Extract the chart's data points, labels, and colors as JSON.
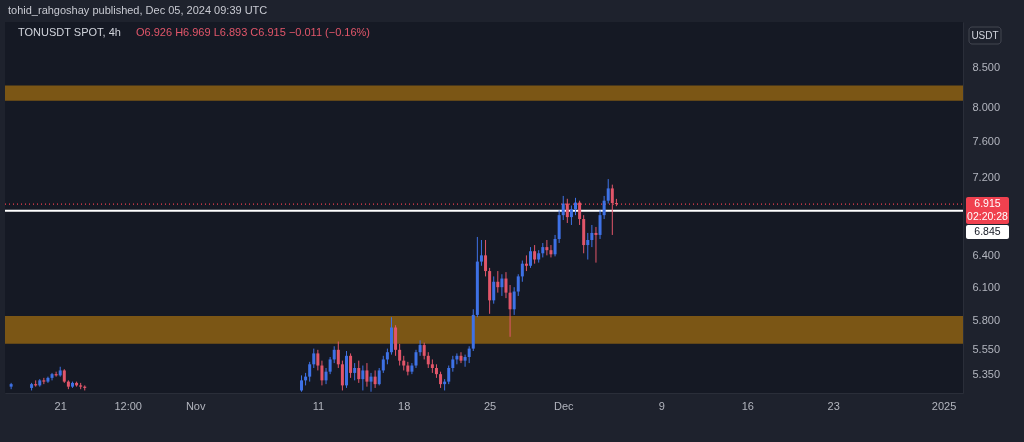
{
  "chart_data": {
    "type": "candlestick",
    "title": "TONUSDT SPOT, 4h",
    "subtitle": "O6.926  H6.969  L6.893  C6.915  −0.011 (−0.16%)",
    "ylabel": "USDT",
    "annotations": [
      "tohid_rahgoshay published, Dec 05, 2024 09:39 UTC",
      "02:20:28"
    ],
    "log": "y",
    "xlim": [
      "2024-10-16T12:00",
      "2025-01-02T14:00"
    ],
    "ylim": [
      5.2,
      9.1
    ],
    "xticks": [
      {
        "value": "2024-10-21",
        "label": "21"
      },
      {
        "value": "2024-10-26T12:00",
        "label": "12:00"
      },
      {
        "value": "2024-11-01",
        "label": "Nov"
      },
      {
        "value": "2024-11-11",
        "label": "11"
      },
      {
        "value": "2024-11-18",
        "label": "18"
      },
      {
        "value": "2024-11-25",
        "label": "25"
      },
      {
        "value": "2024-12-01",
        "label": "Dec"
      },
      {
        "value": "2024-12-09",
        "label": "9"
      },
      {
        "value": "2024-12-16",
        "label": "16"
      },
      {
        "value": "2024-12-23",
        "label": "23"
      },
      {
        "value": "2025-01-01",
        "label": "2025"
      }
    ],
    "yticks": [
      {
        "value": 5.35,
        "label": "5.350"
      },
      {
        "value": 5.55,
        "label": "5.550"
      },
      {
        "value": 5.8,
        "label": "5.800"
      },
      {
        "value": 6.1,
        "label": "6.100"
      },
      {
        "value": 6.4,
        "label": "6.400"
      },
      {
        "value": 7.2,
        "label": "7.200"
      },
      {
        "value": 7.6,
        "label": "7.600"
      },
      {
        "value": 8,
        "label": "8.000"
      },
      {
        "value": 8.5,
        "label": "8.500"
      }
    ],
    "ref_lines": [
      {
        "axis": "y",
        "value": 6.915,
        "label": "6.915",
        "color": "#f0414f",
        "line_style": "dotted"
      },
      {
        "axis": "y",
        "value": 6.845,
        "label": "6.845",
        "color": "#ffffff",
        "line_style": "solid"
      }
    ],
    "bands": [
      {
        "axis": "y",
        "from": 8.08,
        "to": 8.27,
        "color": "#7b5615"
      },
      {
        "axis": "y",
        "from": 5.6,
        "to": 5.84,
        "color": "#7b5615"
      }
    ],
    "x": [
      "2024-10-17T00:00",
      "2024-10-18T16:00",
      "2024-10-19T00:00",
      "2024-10-19T08:00",
      "2024-10-19T16:00",
      "2024-10-20T00:00",
      "2024-10-20T08:00",
      "2024-10-20T16:00",
      "2024-10-21T00:00",
      "2024-10-21T08:00",
      "2024-10-21T16:00",
      "2024-10-22T00:00",
      "2024-10-22T08:00",
      "2024-10-22T16:00",
      "2024-10-23T00:00",
      "2024-11-09T16:00",
      "2024-11-10T00:00",
      "2024-11-10T08:00",
      "2024-11-10T16:00",
      "2024-11-11T00:00",
      "2024-11-11T08:00",
      "2024-11-11T16:00",
      "2024-11-12T00:00",
      "2024-11-12T08:00",
      "2024-11-12T16:00",
      "2024-11-13T00:00",
      "2024-11-13T08:00",
      "2024-11-13T16:00",
      "2024-11-14T00:00",
      "2024-11-14T08:00",
      "2024-11-14T16:00",
      "2024-11-15T00:00",
      "2024-11-15T08:00",
      "2024-11-15T16:00",
      "2024-11-16T00:00",
      "2024-11-16T08:00",
      "2024-11-16T16:00",
      "2024-11-17T00:00",
      "2024-11-17T08:00",
      "2024-11-17T16:00",
      "2024-11-18T00:00",
      "2024-11-18T08:00",
      "2024-11-18T16:00",
      "2024-11-19T00:00",
      "2024-11-19T08:00",
      "2024-11-19T16:00",
      "2024-11-20T00:00",
      "2024-11-20T08:00",
      "2024-11-20T16:00",
      "2024-11-21T00:00",
      "2024-11-21T08:00",
      "2024-11-21T16:00",
      "2024-11-22T00:00",
      "2024-11-22T08:00",
      "2024-11-22T16:00",
      "2024-11-23T00:00",
      "2024-11-23T08:00",
      "2024-11-23T16:00",
      "2024-11-24T00:00",
      "2024-11-24T08:00",
      "2024-11-24T16:00",
      "2024-11-25T00:00",
      "2024-11-25T08:00",
      "2024-11-25T16:00",
      "2024-11-26T00:00",
      "2024-11-26T08:00",
      "2024-11-26T16:00",
      "2024-11-27T00:00",
      "2024-11-27T08:00",
      "2024-11-27T16:00",
      "2024-11-28T00:00",
      "2024-11-28T08:00",
      "2024-11-28T16:00",
      "2024-11-29T00:00",
      "2024-11-29T08:00",
      "2024-11-29T16:00",
      "2024-11-30T00:00",
      "2024-11-30T08:00",
      "2024-11-30T16:00",
      "2024-12-01T00:00",
      "2024-12-01T08:00",
      "2024-12-01T16:00",
      "2024-12-02T00:00",
      "2024-12-02T08:00",
      "2024-12-02T16:00",
      "2024-12-03T00:00",
      "2024-12-03T08:00",
      "2024-12-03T16:00",
      "2024-12-04T00:00",
      "2024-12-04T08:00",
      "2024-12-04T16:00",
      "2024-12-05T00:00",
      "2024-12-05T08:00"
    ],
    "ohlc": [
      [
        5.25,
        5.28,
        5.23,
        5.27
      ],
      [
        5.24,
        5.28,
        5.22,
        5.27
      ],
      [
        5.27,
        5.3,
        5.25,
        5.26
      ],
      [
        5.26,
        5.31,
        5.25,
        5.3
      ],
      [
        5.3,
        5.32,
        5.27,
        5.29
      ],
      [
        5.29,
        5.33,
        5.28,
        5.32
      ],
      [
        5.32,
        5.36,
        5.3,
        5.35
      ],
      [
        5.35,
        5.37,
        5.33,
        5.34
      ],
      [
        5.34,
        5.41,
        5.33,
        5.38
      ],
      [
        5.38,
        5.39,
        5.28,
        5.29
      ],
      [
        5.29,
        5.3,
        5.23,
        5.25
      ],
      [
        5.25,
        5.29,
        5.24,
        5.28
      ],
      [
        5.28,
        5.29,
        5.25,
        5.26
      ],
      [
        5.26,
        5.28,
        5.23,
        5.25
      ],
      [
        5.25,
        5.26,
        5.22,
        5.24
      ],
      [
        5.22,
        5.34,
        5.21,
        5.3
      ],
      [
        5.3,
        5.36,
        5.26,
        5.33
      ],
      [
        5.33,
        5.45,
        5.29,
        5.43
      ],
      [
        5.43,
        5.56,
        5.4,
        5.52
      ],
      [
        5.52,
        5.55,
        5.38,
        5.42
      ],
      [
        5.42,
        5.46,
        5.26,
        5.3
      ],
      [
        5.3,
        5.4,
        5.27,
        5.37
      ],
      [
        5.37,
        5.49,
        5.35,
        5.47
      ],
      [
        5.47,
        5.58,
        5.44,
        5.55
      ],
      [
        5.55,
        5.62,
        5.4,
        5.43
      ],
      [
        5.43,
        5.46,
        5.22,
        5.26
      ],
      [
        5.26,
        5.54,
        5.24,
        5.5
      ],
      [
        5.5,
        5.52,
        5.32,
        5.36
      ],
      [
        5.36,
        5.44,
        5.3,
        5.4
      ],
      [
        5.4,
        5.46,
        5.28,
        5.31
      ],
      [
        5.31,
        5.42,
        5.22,
        5.38
      ],
      [
        5.38,
        5.44,
        5.25,
        5.29
      ],
      [
        5.29,
        5.36,
        5.21,
        5.33
      ],
      [
        5.33,
        5.38,
        5.24,
        5.27
      ],
      [
        5.27,
        5.4,
        5.26,
        5.38
      ],
      [
        5.38,
        5.5,
        5.36,
        5.47
      ],
      [
        5.47,
        5.56,
        5.43,
        5.53
      ],
      [
        5.53,
        5.83,
        5.51,
        5.74
      ],
      [
        5.74,
        5.76,
        5.5,
        5.55
      ],
      [
        5.55,
        5.6,
        5.42,
        5.46
      ],
      [
        5.46,
        5.5,
        5.38,
        5.42
      ],
      [
        5.42,
        5.45,
        5.34,
        5.37
      ],
      [
        5.37,
        5.44,
        5.35,
        5.42
      ],
      [
        5.42,
        5.55,
        5.4,
        5.53
      ],
      [
        5.53,
        5.63,
        5.5,
        5.59
      ],
      [
        5.59,
        5.61,
        5.47,
        5.5
      ],
      [
        5.5,
        5.53,
        5.4,
        5.43
      ],
      [
        5.43,
        5.47,
        5.36,
        5.4
      ],
      [
        5.4,
        5.43,
        5.32,
        5.35
      ],
      [
        5.35,
        5.37,
        5.24,
        5.27
      ],
      [
        5.27,
        5.31,
        5.22,
        5.29
      ],
      [
        5.29,
        5.42,
        5.27,
        5.4
      ],
      [
        5.4,
        5.5,
        5.37,
        5.47
      ],
      [
        5.47,
        5.52,
        5.43,
        5.5
      ],
      [
        5.5,
        5.53,
        5.44,
        5.46
      ],
      [
        5.46,
        5.51,
        5.41,
        5.49
      ],
      [
        5.49,
        5.58,
        5.44,
        5.56
      ],
      [
        5.56,
        5.9,
        5.54,
        5.85
      ],
      [
        5.85,
        6.58,
        5.83,
        6.34
      ],
      [
        6.34,
        6.55,
        6.3,
        6.4
      ],
      [
        6.4,
        6.55,
        6.2,
        6.25
      ],
      [
        6.25,
        6.28,
        5.86,
        5.98
      ],
      [
        5.98,
        6.2,
        5.95,
        6.15
      ],
      [
        6.15,
        6.25,
        6.05,
        6.1
      ],
      [
        6.1,
        6.22,
        6.02,
        6.18
      ],
      [
        6.18,
        6.24,
        6.0,
        6.05
      ],
      [
        6.05,
        6.12,
        5.66,
        5.9
      ],
      [
        5.9,
        6.1,
        5.85,
        6.06
      ],
      [
        6.06,
        6.22,
        6.02,
        6.2
      ],
      [
        6.2,
        6.35,
        6.15,
        6.32
      ],
      [
        6.32,
        6.4,
        6.25,
        6.3
      ],
      [
        6.3,
        6.48,
        6.28,
        6.44
      ],
      [
        6.44,
        6.5,
        6.32,
        6.36
      ],
      [
        6.36,
        6.45,
        6.33,
        6.42
      ],
      [
        6.42,
        6.52,
        6.38,
        6.48
      ],
      [
        6.48,
        6.55,
        6.4,
        6.45
      ],
      [
        6.45,
        6.5,
        6.38,
        6.41
      ],
      [
        6.41,
        6.6,
        6.39,
        6.56
      ],
      [
        6.56,
        6.85,
        6.52,
        6.8
      ],
      [
        6.8,
        7.0,
        6.75,
        6.92
      ],
      [
        6.92,
        6.97,
        6.72,
        6.78
      ],
      [
        6.78,
        6.9,
        6.7,
        6.86
      ],
      [
        6.86,
        6.98,
        6.8,
        6.93
      ],
      [
        6.93,
        6.95,
        6.7,
        6.76
      ],
      [
        6.76,
        6.8,
        6.42,
        6.5
      ],
      [
        6.5,
        6.62,
        6.36,
        6.55
      ],
      [
        6.55,
        6.7,
        6.48,
        6.62
      ],
      [
        6.62,
        6.68,
        6.33,
        6.6
      ],
      [
        6.6,
        6.85,
        6.56,
        6.8
      ],
      [
        6.8,
        7.0,
        6.76,
        6.95
      ],
      [
        6.95,
        7.18,
        6.92,
        7.08
      ],
      [
        7.08,
        7.12,
        6.6,
        6.926
      ],
      [
        6.926,
        6.969,
        6.893,
        6.915
      ]
    ],
    "colors": [
      "#3f72e6",
      "#3f72e6",
      "#e2566a",
      "#3f72e6",
      "#e2566a",
      "#3f72e6",
      "#3f72e6",
      "#e2566a",
      "#3f72e6",
      "#e2566a",
      "#e2566a",
      "#3f72e6",
      "#e2566a",
      "#e2566a",
      "#e2566a",
      "#3f72e6",
      "#3f72e6",
      "#3f72e6",
      "#3f72e6",
      "#e2566a",
      "#e2566a",
      "#3f72e6",
      "#3f72e6",
      "#3f72e6",
      "#e2566a",
      "#e2566a",
      "#3f72e6",
      "#e2566a",
      "#3f72e6",
      "#e2566a",
      "#3f72e6",
      "#e2566a",
      "#3f72e6",
      "#e2566a",
      "#3f72e6",
      "#3f72e6",
      "#3f72e6",
      "#3f72e6",
      "#e2566a",
      "#e2566a",
      "#e2566a",
      "#e2566a",
      "#3f72e6",
      "#3f72e6",
      "#3f72e6",
      "#e2566a",
      "#e2566a",
      "#e2566a",
      "#e2566a",
      "#e2566a",
      "#3f72e6",
      "#3f72e6",
      "#3f72e6",
      "#3f72e6",
      "#e2566a",
      "#3f72e6",
      "#3f72e6",
      "#3f72e6",
      "#3f72e6",
      "#3f72e6",
      "#e2566a",
      "#e2566a",
      "#3f72e6",
      "#e2566a",
      "#3f72e6",
      "#e2566a",
      "#e2566a",
      "#3f72e6",
      "#3f72e6",
      "#3f72e6",
      "#e2566a",
      "#3f72e6",
      "#e2566a",
      "#3f72e6",
      "#3f72e6",
      "#e2566a",
      "#e2566a",
      "#3f72e6",
      "#3f72e6",
      "#3f72e6",
      "#e2566a",
      "#3f72e6",
      "#3f72e6",
      "#e2566a",
      "#e2566a",
      "#3f72e6",
      "#3f72e6",
      "#e2566a",
      "#3f72e6",
      "#3f72e6",
      "#3f72e6",
      "#e2566a",
      "#e2566a"
    ]
  }
}
